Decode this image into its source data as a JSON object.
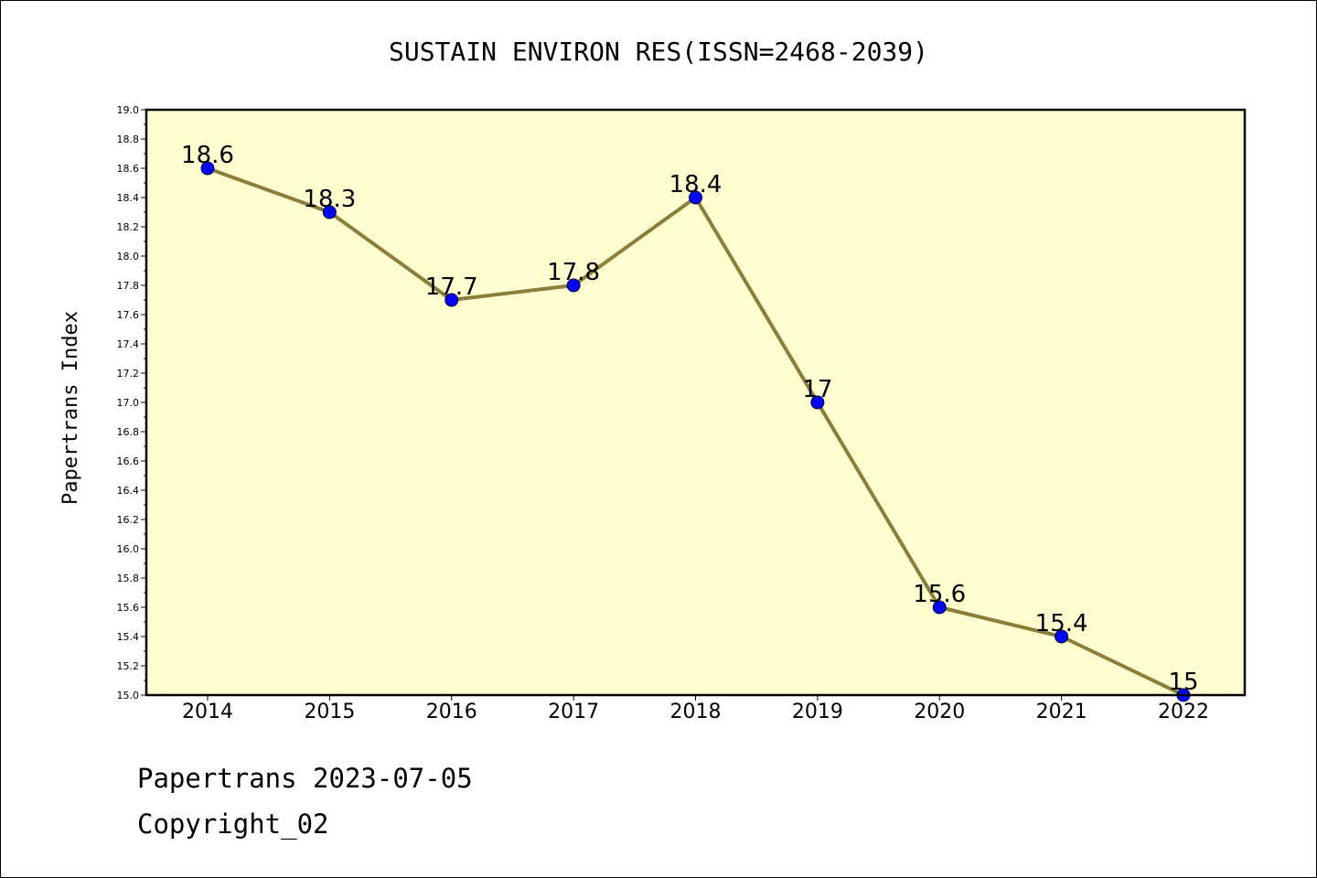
{
  "page": {
    "footer_date": "Papertrans 2023-07-05",
    "footer_copyright": "Copyright_02"
  },
  "chart_data": {
    "type": "line",
    "title": "SUSTAIN ENVIRON RES(ISSN=2468-2039)",
    "xlabel": "",
    "ylabel": "Papertrans Index",
    "categories": [
      "2014",
      "2015",
      "2016",
      "2017",
      "2018",
      "2019",
      "2020",
      "2021",
      "2022"
    ],
    "values": [
      18.6,
      18.3,
      17.7,
      17.8,
      18.4,
      17.0,
      15.6,
      15.4,
      15.0
    ],
    "data_labels": [
      "18.6",
      "18.3",
      "17.7",
      "17.8",
      "18.4",
      "17",
      "15.6",
      "15.4",
      "15"
    ],
    "ylim": [
      15.0,
      19.0
    ],
    "ytick_step": 0.2,
    "grid": false,
    "legend": "none",
    "colors": {
      "plot_background": "#ffffd0",
      "line": "#8b7d3a",
      "marker": "#0000ff"
    }
  }
}
